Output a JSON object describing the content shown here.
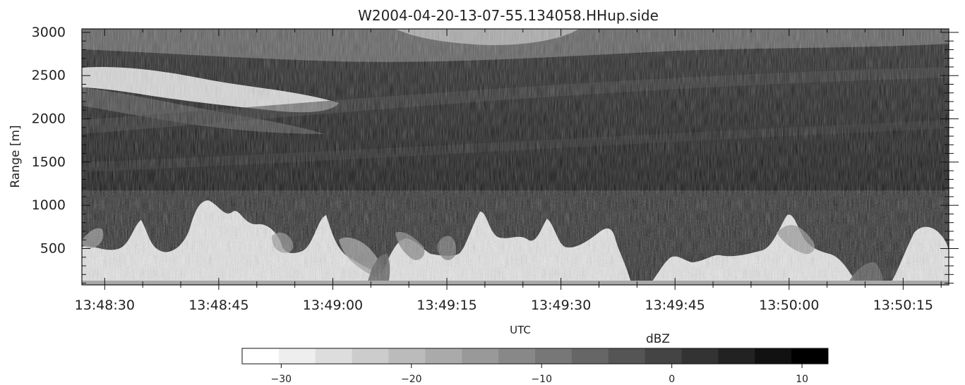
{
  "chart_data": {
    "type": "heatmap",
    "title": "W2004-04-20-13-07-55.134058.HHup.side",
    "xlabel": "UTC",
    "ylabel": "Range [m]",
    "x_range_seconds": [
      "13:48:27",
      "13:50:21"
    ],
    "xticks": [
      "13:48:30",
      "13:48:45",
      "13:49:00",
      "13:49:15",
      "13:49:30",
      "13:49:45",
      "13:50:00",
      "13:50:15"
    ],
    "ylim": [
      80,
      3040
    ],
    "yticks": [
      500,
      1000,
      1500,
      2000,
      2500,
      3000
    ],
    "colorscale": "grayscale-reversed",
    "colorbar": {
      "label": "dBZ",
      "range": [
        -33,
        12
      ],
      "ticks": [
        -30,
        -20,
        -10,
        0,
        10
      ],
      "levels": 16
    },
    "features": [
      {
        "name": "boundary layer echoes",
        "range_m": [
          80,
          1050
        ]
      },
      {
        "name": "elevated layer",
        "range_m": [
          2000,
          2650
        ],
        "time": [
          "13:48:28",
          "13:49:08"
        ]
      },
      {
        "name": "upper sparse echoes",
        "range_m": [
          2700,
          3040
        ]
      }
    ]
  }
}
